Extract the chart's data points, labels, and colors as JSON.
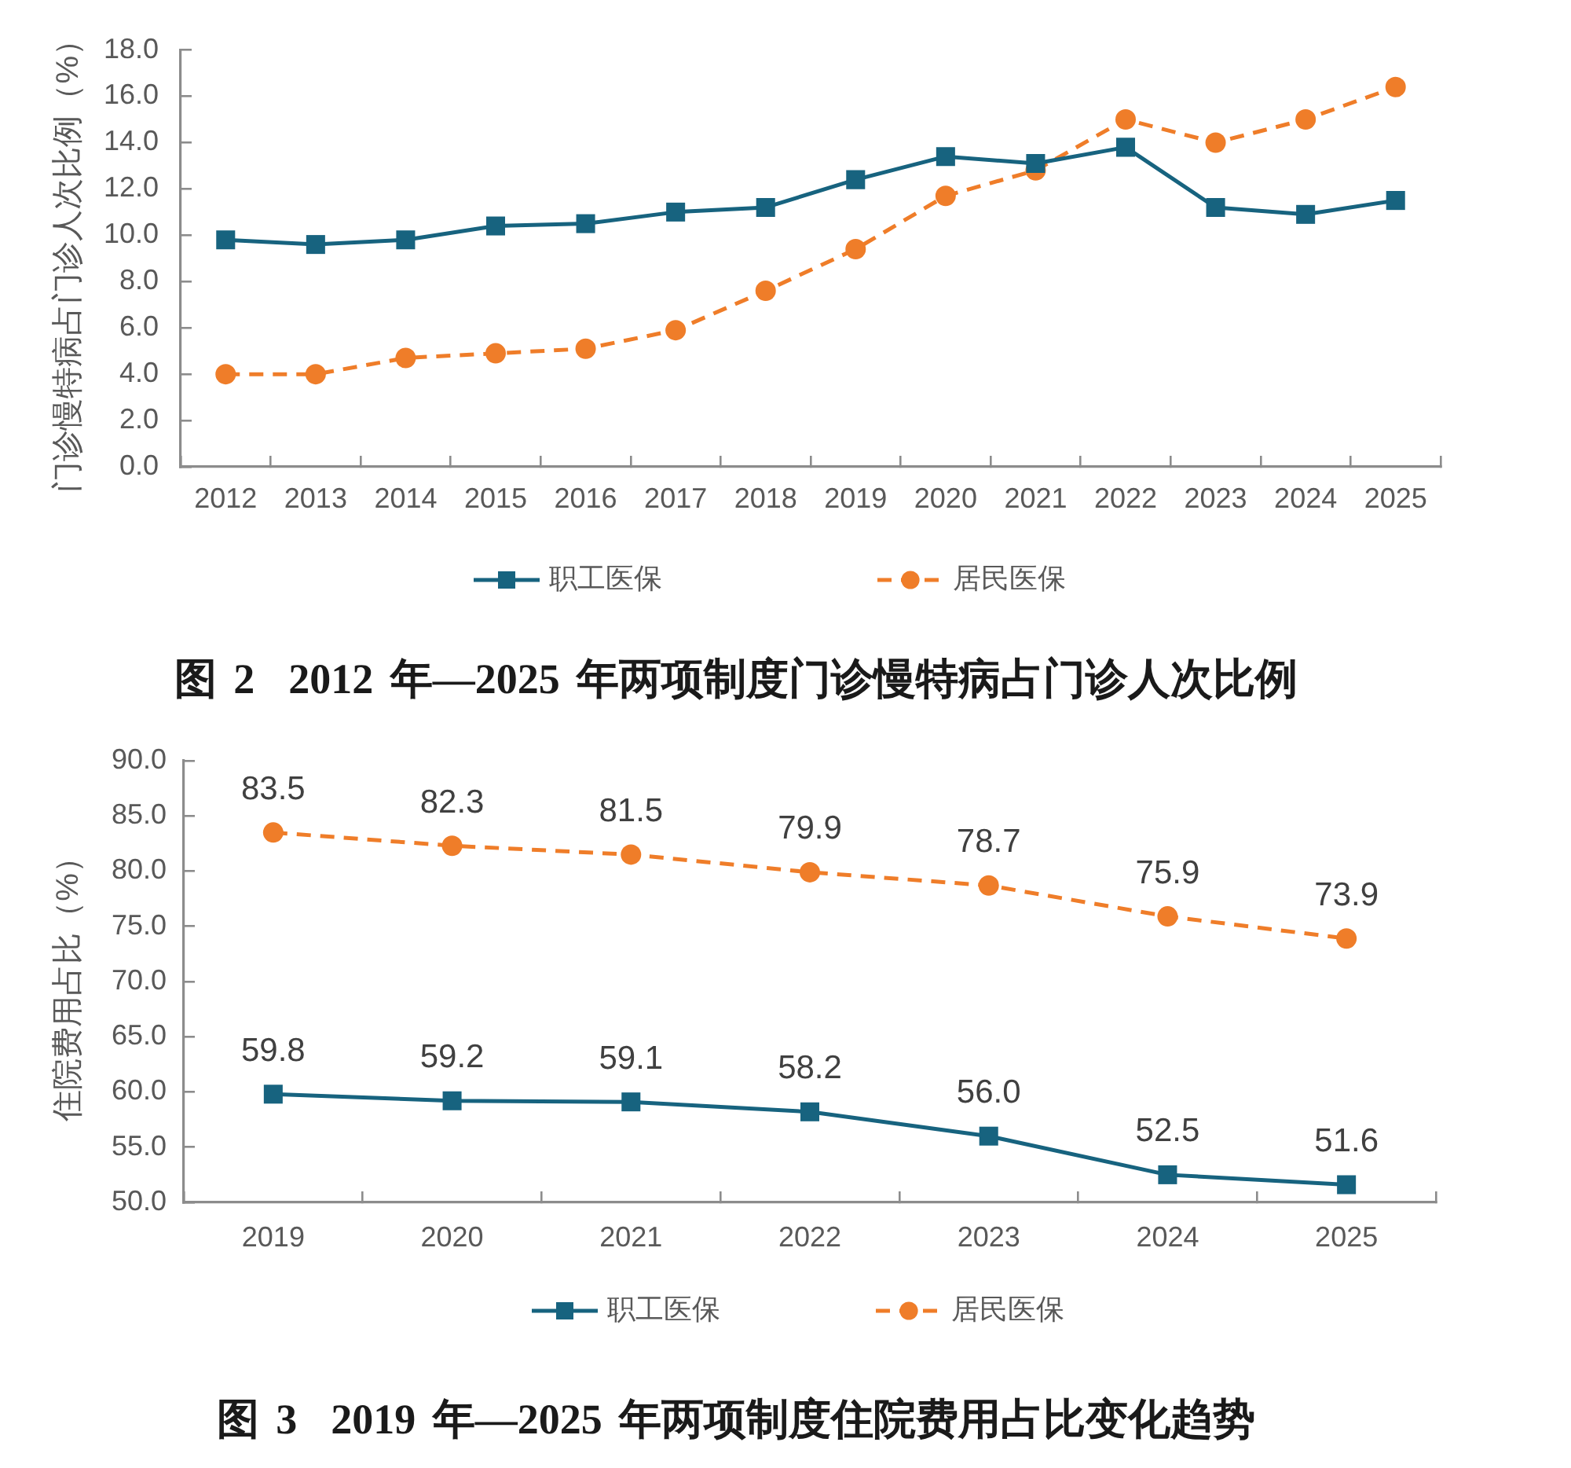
{
  "chart_data": [
    {
      "type": "line",
      "title": "图 2  2012 年—2025 年两项制度门诊慢特病占门诊人次比例",
      "ylabel": "门诊慢特病占门诊人次比例（%）",
      "categories": [
        "2012",
        "2013",
        "2014",
        "2015",
        "2016",
        "2017",
        "2018",
        "2019",
        "2020",
        "2021",
        "2022",
        "2023",
        "2024",
        "2025"
      ],
      "series": [
        {
          "name": "职工医保",
          "color": "#17637f",
          "marker": "square",
          "line_style": "solid",
          "values": [
            9.8,
            9.6,
            9.8,
            10.4,
            10.5,
            11.0,
            11.2,
            12.4,
            13.4,
            13.1,
            13.8,
            11.2,
            10.9,
            11.5
          ]
        },
        {
          "name": "居民医保",
          "color": "#ef7d29",
          "marker": "circle",
          "line_style": "dashed",
          "values": [
            4.0,
            4.0,
            4.7,
            4.9,
            5.1,
            5.9,
            7.6,
            9.4,
            11.7,
            12.8,
            15.0,
            14.0,
            15.0,
            16.4
          ]
        }
      ],
      "ylim": [
        0,
        18
      ],
      "yticks": [
        {
          "value": 0,
          "label": "0.0"
        },
        {
          "value": 2,
          "label": "2.0"
        },
        {
          "value": 4,
          "label": "4.0"
        },
        {
          "value": 6,
          "label": "6.0"
        },
        {
          "value": 8,
          "label": "8.0"
        },
        {
          "value": 10,
          "label": "10.0"
        },
        {
          "value": 12,
          "label": "12.0"
        },
        {
          "value": 14,
          "label": "14.0"
        },
        {
          "value": 16,
          "label": "16.0"
        },
        {
          "value": 18,
          "label": "18.0"
        }
      ],
      "legend": "bottom"
    },
    {
      "type": "line",
      "title": "图 3  2019 年—2025 年两项制度住院费用占比变化趋势",
      "ylabel": "住院费用占比（%）",
      "categories": [
        "2019",
        "2020",
        "2021",
        "2022",
        "2023",
        "2024",
        "2025"
      ],
      "series": [
        {
          "name": "职工医保",
          "color": "#17637f",
          "marker": "square",
          "line_style": "solid",
          "values": [
            59.8,
            59.2,
            59.1,
            58.2,
            56.0,
            52.5,
            51.6
          ],
          "value_labels": [
            "59.8",
            "59.2",
            "59.1",
            "58.2",
            "56.0",
            "52.5",
            "51.6"
          ]
        },
        {
          "name": "居民医保",
          "color": "#ef7d29",
          "marker": "circle",
          "line_style": "dashed",
          "values": [
            83.5,
            82.3,
            81.5,
            79.9,
            78.7,
            75.9,
            73.9
          ],
          "value_labels": [
            "83.5",
            "82.3",
            "81.5",
            "79.9",
            "78.7",
            "75.9",
            "73.9"
          ]
        }
      ],
      "ylim": [
        50,
        90
      ],
      "yticks": [
        {
          "value": 50,
          "label": "50.0"
        },
        {
          "value": 55,
          "label": "55.0"
        },
        {
          "value": 60,
          "label": "60.0"
        },
        {
          "value": 65,
          "label": "65.0"
        },
        {
          "value": 70,
          "label": "70.0"
        },
        {
          "value": 75,
          "label": "75.0"
        },
        {
          "value": 80,
          "label": "80.0"
        },
        {
          "value": 85,
          "label": "85.0"
        },
        {
          "value": 90,
          "label": "90.0"
        }
      ],
      "legend": "bottom"
    }
  ]
}
